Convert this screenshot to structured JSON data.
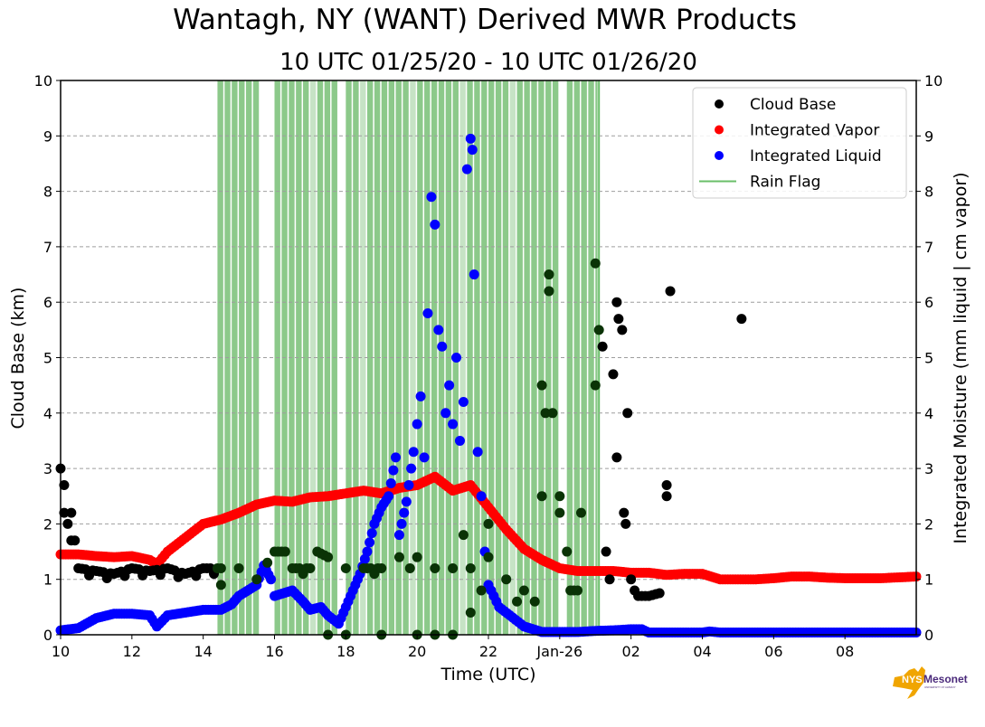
{
  "chart_data": {
    "type": "scatter",
    "title": "Wantagh, NY (WANT) Derived MWR Products",
    "subtitle": "10 UTC 01/25/20 - 10 UTC 01/26/20",
    "xlabel": "Time (UTC)",
    "ylabel": "Cloud Base (km)",
    "ylabel_right": "Integrated Moisture (mm liquid | cm vapor)",
    "x_unit": "hours since 10 UTC 01/25/20",
    "xlim": [
      0,
      24
    ],
    "ylim": [
      0,
      10
    ],
    "ylim_right": [
      0,
      10
    ],
    "x_ticks": [
      {
        "x": 0,
        "label": "10"
      },
      {
        "x": 2,
        "label": "12"
      },
      {
        "x": 4,
        "label": "14"
      },
      {
        "x": 6,
        "label": "16"
      },
      {
        "x": 8,
        "label": "18"
      },
      {
        "x": 10,
        "label": "20"
      },
      {
        "x": 12,
        "label": "22"
      },
      {
        "x": 14,
        "label": "Jan-26"
      },
      {
        "x": 16,
        "label": "02"
      },
      {
        "x": 18,
        "label": "04"
      },
      {
        "x": 20,
        "label": "06"
      },
      {
        "x": 22,
        "label": "08"
      }
    ],
    "y_ticks": [
      0,
      1,
      2,
      3,
      4,
      5,
      6,
      7,
      8,
      9,
      10
    ],
    "grid": "horizontal dashed",
    "legend_position": "top-right",
    "legend": [
      {
        "label": "Cloud Base",
        "marker": "dot",
        "color": "#000000"
      },
      {
        "label": "Integrated Vapor",
        "marker": "dot",
        "color": "#ff0000"
      },
      {
        "label": "Integrated Liquid",
        "marker": "dot",
        "color": "#0000ff"
      },
      {
        "label": "Rain Flag",
        "marker": "line",
        "color": "#6abf69"
      }
    ],
    "rain_flag": {
      "color": "#8cc98a",
      "span": [
        4.4,
        15.1
      ],
      "gaps": [
        5.65,
        5.85,
        7.75,
        13.9,
        14.05
      ]
    },
    "series": [
      {
        "name": "Integrated Vapor",
        "color": "#ff0000",
        "points": [
          [
            0,
            1.45
          ],
          [
            0.5,
            1.45
          ],
          [
            1,
            1.42
          ],
          [
            1.5,
            1.4
          ],
          [
            2,
            1.42
          ],
          [
            2.5,
            1.35
          ],
          [
            2.7,
            1.27
          ],
          [
            3,
            1.5
          ],
          [
            3.5,
            1.75
          ],
          [
            4,
            2.0
          ],
          [
            4.5,
            2.08
          ],
          [
            5,
            2.2
          ],
          [
            5.5,
            2.35
          ],
          [
            6,
            2.42
          ],
          [
            6.5,
            2.4
          ],
          [
            7,
            2.48
          ],
          [
            7.5,
            2.5
          ],
          [
            8,
            2.55
          ],
          [
            8.5,
            2.6
          ],
          [
            9,
            2.55
          ],
          [
            9.5,
            2.65
          ],
          [
            10,
            2.7
          ],
          [
            10.5,
            2.85
          ],
          [
            11,
            2.6
          ],
          [
            11.5,
            2.7
          ],
          [
            12,
            2.3
          ],
          [
            12.5,
            1.9
          ],
          [
            13,
            1.55
          ],
          [
            13.5,
            1.35
          ],
          [
            14,
            1.2
          ],
          [
            14.5,
            1.15
          ],
          [
            15,
            1.15
          ],
          [
            15.5,
            1.15
          ],
          [
            16,
            1.12
          ],
          [
            16.5,
            1.12
          ],
          [
            17,
            1.08
          ],
          [
            17.5,
            1.1
          ],
          [
            18,
            1.1
          ],
          [
            18.5,
            1.0
          ],
          [
            19,
            1.0
          ],
          [
            19.5,
            1.0
          ],
          [
            20,
            1.02
          ],
          [
            20.5,
            1.05
          ],
          [
            21,
            1.05
          ],
          [
            21.5,
            1.03
          ],
          [
            22,
            1.02
          ],
          [
            22.5,
            1.02
          ],
          [
            23,
            1.02
          ],
          [
            24,
            1.05
          ]
        ]
      },
      {
        "name": "Integrated Liquid",
        "color": "#0000ff",
        "points": [
          [
            0,
            0.08
          ],
          [
            0.5,
            0.12
          ],
          [
            1,
            0.3
          ],
          [
            1.5,
            0.38
          ],
          [
            2,
            0.38
          ],
          [
            2.5,
            0.35
          ],
          [
            2.7,
            0.15
          ],
          [
            3,
            0.35
          ],
          [
            3.5,
            0.4
          ],
          [
            4,
            0.45
          ],
          [
            4.5,
            0.45
          ],
          [
            4.8,
            0.55
          ],
          [
            5,
            0.7
          ],
          [
            5.5,
            0.9
          ],
          [
            5.7,
            1.25
          ],
          [
            5.9,
            1.0
          ],
          [
            6,
            0.7
          ],
          [
            6.5,
            0.8
          ],
          [
            6.8,
            0.6
          ],
          [
            7,
            0.45
          ],
          [
            7.3,
            0.5
          ],
          [
            7.5,
            0.35
          ],
          [
            7.8,
            0.2
          ],
          [
            8,
            0.5
          ],
          [
            8.2,
            0.8
          ],
          [
            8.4,
            1.1
          ],
          [
            8.6,
            1.5
          ],
          [
            8.8,
            2.0
          ],
          [
            9,
            2.3
          ],
          [
            9.2,
            2.5
          ],
          [
            9.4,
            3.2
          ],
          [
            9.5,
            1.8
          ],
          [
            9.7,
            2.4
          ],
          [
            9.9,
            3.3
          ],
          [
            10.0,
            3.8
          ],
          [
            10.1,
            4.3
          ],
          [
            10.2,
            3.2
          ],
          [
            10.3,
            5.8
          ],
          [
            10.4,
            7.9
          ],
          [
            10.5,
            7.4
          ],
          [
            10.6,
            5.5
          ],
          [
            10.7,
            5.2
          ],
          [
            10.8,
            4.0
          ],
          [
            10.9,
            4.5
          ],
          [
            11.0,
            3.8
          ],
          [
            11.1,
            5.0
          ],
          [
            11.2,
            3.5
          ],
          [
            11.3,
            4.2
          ],
          [
            11.4,
            8.4
          ],
          [
            11.5,
            8.95
          ],
          [
            11.55,
            8.75
          ],
          [
            11.6,
            6.5
          ],
          [
            11.7,
            3.3
          ],
          [
            11.8,
            2.5
          ],
          [
            11.9,
            1.5
          ],
          [
            12,
            0.9
          ],
          [
            12.3,
            0.5
          ],
          [
            12.6,
            0.35
          ],
          [
            13,
            0.15
          ],
          [
            13.5,
            0.05
          ],
          [
            14,
            0.05
          ],
          [
            14.5,
            0.05
          ],
          [
            15,
            0.07
          ],
          [
            15.5,
            0.08
          ],
          [
            16,
            0.1
          ],
          [
            16.3,
            0.1
          ],
          [
            16.5,
            0.04
          ],
          [
            17,
            0.04
          ],
          [
            18,
            0.04
          ],
          [
            18.2,
            0.06
          ],
          [
            18.5,
            0.04
          ],
          [
            20,
            0.04
          ],
          [
            22,
            0.04
          ],
          [
            24,
            0.04
          ]
        ]
      },
      {
        "name": "Cloud Base",
        "color": "#000000",
        "points": [
          [
            0,
            3.0
          ],
          [
            0.1,
            2.7
          ],
          [
            0.1,
            2.2
          ],
          [
            0.2,
            2.0
          ],
          [
            0.3,
            2.2
          ],
          [
            0.3,
            1.7
          ],
          [
            0.4,
            1.7
          ],
          [
            0.5,
            1.2
          ],
          [
            1,
            1.15
          ],
          [
            1.5,
            1.1
          ],
          [
            2,
            1.2
          ],
          [
            2.5,
            1.15
          ],
          [
            3,
            1.2
          ],
          [
            3.5,
            1.1
          ],
          [
            4,
            1.2
          ],
          [
            4.5,
            1.2
          ],
          [
            4.5,
            0.9
          ],
          [
            5,
            1.2
          ],
          [
            5.5,
            1.0
          ],
          [
            5.8,
            1.3
          ],
          [
            6,
            1.5
          ],
          [
            6.3,
            1.5
          ],
          [
            6.5,
            1.2
          ],
          [
            7,
            1.2
          ],
          [
            7.2,
            1.5
          ],
          [
            7.5,
            1.4
          ],
          [
            7.5,
            0.0
          ],
          [
            8,
            1.2
          ],
          [
            8.0,
            0.0
          ],
          [
            8.5,
            1.2
          ],
          [
            9,
            1.2
          ],
          [
            9,
            0.0
          ],
          [
            9.5,
            1.4
          ],
          [
            9.8,
            1.2
          ],
          [
            10,
            1.4
          ],
          [
            10,
            0.0
          ],
          [
            10.5,
            1.2
          ],
          [
            10.5,
            0.0
          ],
          [
            11,
            1.2
          ],
          [
            11,
            0.0
          ],
          [
            11.3,
            1.8
          ],
          [
            11.5,
            1.2
          ],
          [
            11.5,
            0.4
          ],
          [
            11.8,
            0.8
          ],
          [
            12,
            1.4
          ],
          [
            12,
            2.0
          ],
          [
            12.5,
            1.0
          ],
          [
            12.8,
            0.6
          ],
          [
            13,
            0.8
          ],
          [
            13.3,
            0.6
          ],
          [
            13.5,
            2.5
          ],
          [
            13.5,
            4.5
          ],
          [
            13.6,
            4.0
          ],
          [
            13.7,
            6.2
          ],
          [
            13.7,
            6.5
          ],
          [
            13.8,
            4.0
          ],
          [
            14,
            2.5
          ],
          [
            14,
            2.2
          ],
          [
            14.2,
            1.5
          ],
          [
            14.3,
            0.8
          ],
          [
            14.5,
            0.8
          ],
          [
            14.6,
            2.2
          ],
          [
            15,
            6.7
          ],
          [
            15,
            4.5
          ],
          [
            15.1,
            5.5
          ],
          [
            15.2,
            5.2
          ],
          [
            15.3,
            1.5
          ],
          [
            15.4,
            1.0
          ],
          [
            15.5,
            4.7
          ],
          [
            15.6,
            3.2
          ],
          [
            15.6,
            6.0
          ],
          [
            15.65,
            5.7
          ],
          [
            15.75,
            5.5
          ],
          [
            15.8,
            2.2
          ],
          [
            15.85,
            2.0
          ],
          [
            15.9,
            4.0
          ],
          [
            16,
            1.0
          ],
          [
            16.1,
            0.8
          ],
          [
            16.2,
            0.7
          ],
          [
            16.5,
            0.7
          ],
          [
            16.8,
            0.75
          ],
          [
            17.0,
            2.5
          ],
          [
            17.0,
            2.7
          ],
          [
            17.1,
            6.2
          ],
          [
            19.1,
            5.7
          ]
        ]
      }
    ]
  },
  "branding": {
    "logo_text_primary": "NYS",
    "logo_text_secondary": "Mesonet",
    "logo_subtext": "UNIVERSITY AT ALBANY",
    "logo_color": "#f0a500",
    "logo_text_color": "#4b2a7b"
  }
}
